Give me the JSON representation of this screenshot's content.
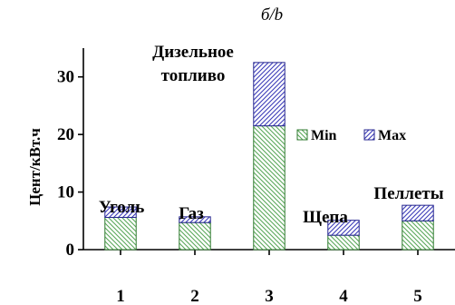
{
  "chart_data": {
    "type": "bar",
    "stacked": true,
    "title": "б/b",
    "ylabel": "Цент/кВт.ч",
    "categories": [
      "1",
      "2",
      "3",
      "4",
      "5"
    ],
    "annotations": [
      "Уголь",
      "Газ",
      "Дизельное топливо",
      "Щепа",
      "Пеллеты"
    ],
    "annotation_lines": [
      [
        "Уголь"
      ],
      [
        "Газ"
      ],
      [
        "Дизельное",
        "топливо"
      ],
      [
        "Щепа"
      ],
      [
        "Пеллеты"
      ]
    ],
    "ylim": [
      0,
      35
    ],
    "yticks": [
      0,
      10,
      20,
      30
    ],
    "grid": false,
    "legend_position": "upper-right",
    "series": [
      {
        "name": "Min",
        "values": [
          5.6,
          4.7,
          21.5,
          2.5,
          5.0
        ],
        "color": "#9fd69f",
        "hatch": "diagonal-down"
      },
      {
        "name": "Max",
        "values": [
          1.8,
          1.0,
          11.0,
          2.6,
          2.7
        ],
        "color": "#9a9ae6",
        "hatch": "diagonal-up"
      }
    ]
  }
}
